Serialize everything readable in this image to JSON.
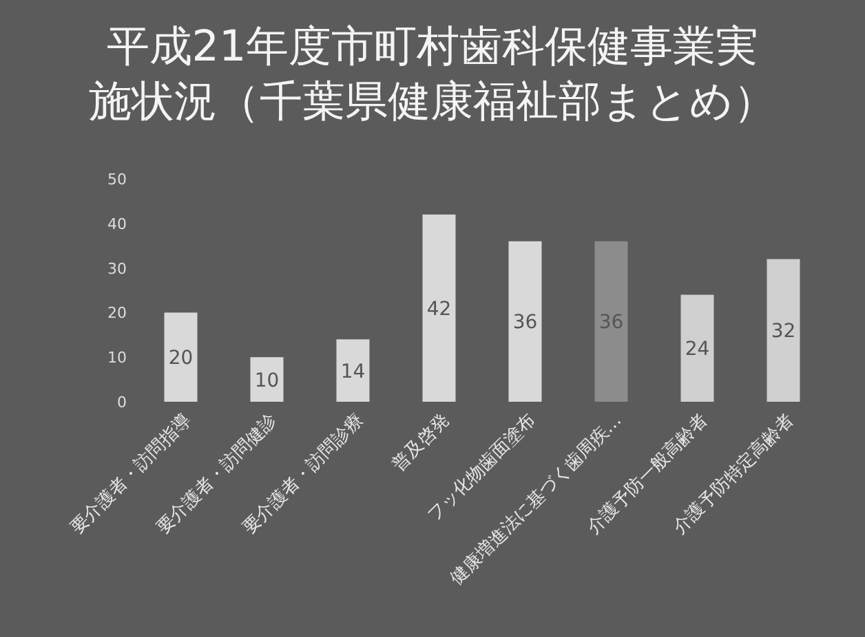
{
  "chart_data": {
    "type": "bar",
    "title": "平成21年度市町村歯科保健事業実施状況（千葉県健康福祉部まとめ）",
    "categories": [
      "要介護者・訪問指導",
      "要介護者・訪問健診",
      "要介護者・訪問診療",
      "普及啓発",
      "フッ化物歯面塗布",
      "健康増進法に基づく歯周疾…",
      "介護予防一般高齢者",
      "介護予防特定高齢者"
    ],
    "values": [
      20,
      10,
      14,
      42,
      36,
      36,
      24,
      32
    ],
    "colors": [
      "#d9d9d9",
      "#d9d9d9",
      "#d9d9d9",
      "#d9d9d9",
      "#d9d9d9",
      "#8c8c8c",
      "#d0d0d0",
      "#d0d0d0"
    ],
    "ylim": [
      0,
      50
    ],
    "yticks": [
      0,
      10,
      20,
      30,
      40,
      50
    ],
    "grid": false,
    "data_labels": true
  }
}
